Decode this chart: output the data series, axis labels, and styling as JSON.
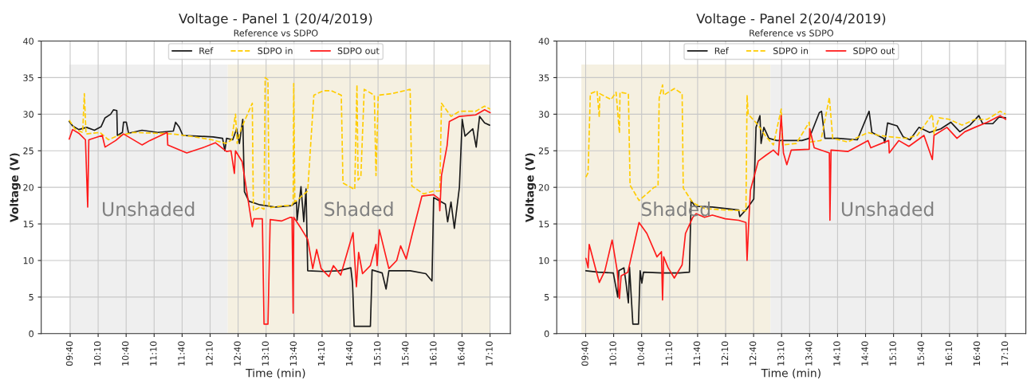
{
  "chart_data": [
    {
      "type": "line",
      "title": "Voltage - Panel 1 (20/4/2019)",
      "subtitle": "Reference vs SDPO",
      "xlabel": "Time (min)",
      "ylabel": "Voltage (V)",
      "xlim": [
        9.15,
        17.53
      ],
      "ylim": [
        0,
        40
      ],
      "yticks": [
        0,
        5,
        10,
        15,
        20,
        25,
        30,
        35,
        40
      ],
      "xticks": [
        {
          "value": 9.6667,
          "label": "09:40"
        },
        {
          "value": 10.1667,
          "label": "10:10"
        },
        {
          "value": 10.6667,
          "label": "10:40"
        },
        {
          "value": 11.1667,
          "label": "11:10"
        },
        {
          "value": 11.6667,
          "label": "11:40"
        },
        {
          "value": 12.1667,
          "label": "12:10"
        },
        {
          "value": 12.6667,
          "label": "12:40"
        },
        {
          "value": 13.1667,
          "label": "13:10"
        },
        {
          "value": 13.6667,
          "label": "13:40"
        },
        {
          "value": 14.1667,
          "label": "14:10"
        },
        {
          "value": 14.6667,
          "label": "14:40"
        },
        {
          "value": 15.1667,
          "label": "15:10"
        },
        {
          "value": 15.6667,
          "label": "15:40"
        },
        {
          "value": 16.1667,
          "label": "16:10"
        },
        {
          "value": 16.6667,
          "label": "16:40"
        },
        {
          "value": 17.1667,
          "label": "17:10"
        }
      ],
      "grid": true,
      "legend": "top",
      "bands": [
        {
          "axis": "x",
          "from": 9.65,
          "to": 12.48,
          "label": "Unshaded",
          "color": "#efefef"
        },
        {
          "axis": "x",
          "from": 12.48,
          "to": 17.17,
          "label": "Shaded",
          "color": "#f5f0e1"
        }
      ],
      "series": [
        {
          "name": "Ref",
          "color": "#1a1a1a",
          "line_style": "solid",
          "x": [
            9.65,
            9.71,
            9.82,
            9.96,
            10.1,
            10.22,
            10.29,
            10.39,
            10.44,
            10.5,
            10.51,
            10.6,
            10.62,
            10.67,
            10.71,
            10.95,
            11.23,
            11.51,
            11.55,
            11.61,
            11.68,
            11.93,
            12.22,
            12.39,
            12.43,
            12.46,
            12.57,
            12.64,
            12.69,
            12.75,
            12.78,
            12.86,
            13.06,
            13.34,
            13.62,
            13.71,
            13.72,
            13.79,
            13.84,
            13.88,
            13.91,
            14.19,
            14.47,
            14.68,
            14.71,
            14.74,
            15.03,
            15.06,
            15.24,
            15.31,
            15.36,
            15.74,
            16.02,
            16.13,
            16.16,
            16.37,
            16.41,
            16.47,
            16.53,
            16.58,
            16.62,
            16.67,
            16.72,
            16.86,
            16.92,
            16.98,
            17.07,
            17.16
          ],
          "values": [
            29.0,
            28.4,
            27.9,
            28.2,
            27.8,
            28.3,
            29.5,
            30.0,
            30.6,
            30.5,
            27.1,
            27.5,
            28.9,
            28.9,
            27.4,
            27.8,
            27.5,
            27.7,
            28.9,
            28.3,
            27.1,
            27.0,
            26.9,
            26.7,
            25.0,
            26.7,
            26.5,
            28.0,
            26.0,
            29.3,
            19.4,
            18.1,
            17.6,
            17.3,
            17.5,
            18.0,
            15.5,
            20.1,
            15.3,
            19.8,
            8.6,
            8.5,
            8.6,
            9.0,
            7.0,
            1.0,
            1.0,
            8.7,
            8.3,
            6.1,
            8.6,
            8.6,
            8.2,
            7.2,
            18.6,
            17.7,
            15.3,
            18.0,
            14.4,
            17.5,
            20.0,
            29.3,
            27.0,
            28.0,
            25.5,
            29.7,
            28.8,
            28.5
          ]
        },
        {
          "name": "SDPO in",
          "color": "#ffcc00",
          "line_style": "dashed",
          "x": [
            9.65,
            9.75,
            9.89,
            9.92,
            9.95,
            10.2,
            10.35,
            10.5,
            10.8,
            11.2,
            11.5,
            11.8,
            12.2,
            12.45,
            12.55,
            12.62,
            12.65,
            12.72,
            12.92,
            12.94,
            13.06,
            13.13,
            13.15,
            13.2,
            13.22,
            13.48,
            13.62,
            13.65,
            13.66,
            13.68,
            13.91,
            14.02,
            14.19,
            14.33,
            14.51,
            14.54,
            14.75,
            14.79,
            14.81,
            14.86,
            14.92,
            15.1,
            15.13,
            15.17,
            15.41,
            15.74,
            15.77,
            15.98,
            16.16,
            16.27,
            16.3,
            16.47,
            16.62,
            16.91,
            17.07,
            17.17
          ],
          "values": [
            29.2,
            28.0,
            27.5,
            32.8,
            27.3,
            27.5,
            26.5,
            27.0,
            27.5,
            27.4,
            27.3,
            27.0,
            26.5,
            26.0,
            26.5,
            30.0,
            26.0,
            28.0,
            31.5,
            16.8,
            17.3,
            17.0,
            35.0,
            34.7,
            17.2,
            17.5,
            17.5,
            17.9,
            34.2,
            18.0,
            19.5,
            32.6,
            33.2,
            33.2,
            32.6,
            20.6,
            19.7,
            34.0,
            21.0,
            21.5,
            33.4,
            32.6,
            21.6,
            32.6,
            32.8,
            33.4,
            20.2,
            19.1,
            19.5,
            19.5,
            31.5,
            29.7,
            30.4,
            30.4,
            31.1,
            30.7
          ]
        },
        {
          "name": "SDPO out",
          "color": "#ff1a1a",
          "line_style": "solid",
          "x": [
            9.65,
            9.71,
            9.82,
            9.94,
            9.98,
            10.0,
            10.24,
            10.29,
            10.48,
            10.62,
            10.95,
            11.09,
            11.4,
            11.41,
            11.75,
            12.03,
            12.26,
            12.46,
            12.54,
            12.6,
            12.62,
            12.74,
            12.82,
            12.92,
            12.95,
            13.1,
            13.13,
            13.2,
            13.24,
            13.44,
            13.6,
            13.63,
            13.65,
            13.66,
            13.79,
            13.91,
            14.0,
            14.07,
            14.15,
            14.29,
            14.37,
            14.5,
            14.72,
            14.78,
            14.82,
            14.89,
            15.03,
            15.13,
            15.15,
            15.19,
            15.36,
            15.5,
            15.57,
            15.67,
            15.78,
            15.95,
            16.16,
            16.26,
            16.27,
            16.3,
            16.4,
            16.44,
            16.62,
            16.91,
            17.07,
            17.17
          ],
          "values": [
            26.6,
            27.9,
            27.4,
            26.5,
            17.3,
            26.5,
            27.1,
            25.5,
            26.4,
            27.3,
            25.8,
            26.4,
            27.5,
            25.8,
            24.7,
            25.4,
            26.1,
            24.9,
            25.0,
            21.9,
            25.0,
            23.5,
            19.5,
            14.6,
            15.7,
            15.7,
            1.3,
            1.3,
            15.6,
            15.4,
            15.9,
            15.9,
            2.8,
            15.9,
            14.4,
            12.9,
            8.9,
            11.5,
            8.9,
            7.8,
            9.3,
            8.0,
            13.8,
            6.4,
            11.1,
            8.2,
            9.3,
            12.2,
            9.3,
            14.2,
            8.9,
            10.0,
            12.0,
            10.2,
            13.7,
            18.8,
            19.0,
            18.4,
            16.8,
            21.6,
            25.7,
            29.0,
            29.7,
            29.9,
            30.6,
            30.2
          ]
        }
      ]
    },
    {
      "type": "line",
      "title": "Voltage - Panel 2(20/4/2019)",
      "subtitle": "Reference vs SDPO",
      "xlabel": "Time (min)",
      "ylabel": "Voltage (V)",
      "xlim": [
        9.15,
        17.53
      ],
      "ylim": [
        0,
        40
      ],
      "yticks": [
        0,
        5,
        10,
        15,
        20,
        25,
        30,
        35,
        40
      ],
      "xticks": [
        {
          "value": 9.6667,
          "label": "09:40"
        },
        {
          "value": 10.1667,
          "label": "10:10"
        },
        {
          "value": 10.6667,
          "label": "10:40"
        },
        {
          "value": 11.1667,
          "label": "11:10"
        },
        {
          "value": 11.6667,
          "label": "11:40"
        },
        {
          "value": 12.1667,
          "label": "12:10"
        },
        {
          "value": 12.6667,
          "label": "12:40"
        },
        {
          "value": 13.1667,
          "label": "13:10"
        },
        {
          "value": 13.6667,
          "label": "13:40"
        },
        {
          "value": 14.1667,
          "label": "14:10"
        },
        {
          "value": 14.6667,
          "label": "14:40"
        },
        {
          "value": 15.1667,
          "label": "15:10"
        },
        {
          "value": 15.6667,
          "label": "15:40"
        },
        {
          "value": 16.1667,
          "label": "16:10"
        },
        {
          "value": 16.6667,
          "label": "16:40"
        },
        {
          "value": 17.1667,
          "label": "17:10"
        }
      ],
      "grid": true,
      "legend": "top",
      "bands": [
        {
          "axis": "x",
          "from": 9.59,
          "to": 12.97,
          "label": "Shaded",
          "color": "#f5f0e1"
        },
        {
          "axis": "x",
          "from": 12.97,
          "to": 17.15,
          "label": "Unshaded",
          "color": "#efefef"
        }
      ],
      "series": [
        {
          "name": "Ref",
          "color": "#1a1a1a",
          "line_style": "solid",
          "x": [
            9.67,
            9.89,
            10.16,
            10.24,
            10.26,
            10.35,
            10.39,
            10.43,
            10.45,
            10.51,
            10.61,
            10.64,
            10.67,
            10.7,
            11.03,
            11.34,
            11.52,
            11.55,
            11.62,
            11.93,
            12.4,
            12.42,
            12.55,
            12.67,
            12.71,
            12.78,
            12.8,
            12.85,
            12.94,
            13.08,
            13.26,
            13.53,
            13.66,
            13.84,
            13.88,
            13.94,
            14.17,
            14.52,
            14.73,
            14.78,
            14.99,
            15.01,
            15.06,
            15.23,
            15.34,
            15.46,
            15.62,
            15.81,
            16.01,
            16.19,
            16.35,
            16.53,
            16.69,
            16.76,
            16.94,
            17.05,
            17.17
          ],
          "values": [
            8.6,
            8.4,
            8.3,
            5.0,
            8.6,
            9.0,
            6.8,
            4.2,
            9.1,
            1.3,
            1.3,
            8.6,
            6.9,
            8.4,
            8.3,
            8.3,
            8.4,
            18.2,
            17.4,
            17.3,
            16.9,
            16.0,
            17.1,
            18.4,
            28.2,
            29.8,
            26.0,
            28.2,
            26.7,
            26.4,
            26.4,
            26.4,
            26.7,
            30.2,
            30.4,
            26.7,
            26.7,
            26.5,
            30.4,
            27.5,
            26.7,
            26.1,
            28.8,
            28.4,
            26.9,
            26.5,
            28.2,
            27.5,
            28.0,
            28.9,
            27.6,
            28.5,
            29.8,
            28.7,
            28.7,
            29.6,
            29.5
          ]
        },
        {
          "name": "SDPO in",
          "color": "#ffcc00",
          "line_style": "dashed",
          "x": [
            9.67,
            9.71,
            9.75,
            9.87,
            9.91,
            9.92,
            10.12,
            10.21,
            10.27,
            10.28,
            10.43,
            10.46,
            10.62,
            10.89,
            10.96,
            10.98,
            11.04,
            11.06,
            11.25,
            11.39,
            11.41,
            11.58,
            11.79,
            12.16,
            12.53,
            12.55,
            12.57,
            12.75,
            12.89,
            13.02,
            13.16,
            13.18,
            13.43,
            13.66,
            13.68,
            13.87,
            14.02,
            14.08,
            14.35,
            14.71,
            14.9,
            15.12,
            15.39,
            15.59,
            15.86,
            15.89,
            15.98,
            16.16,
            16.39,
            16.62,
            16.84,
            17.07,
            17.17
          ],
          "values": [
            21.4,
            22.0,
            32.8,
            33.2,
            29.6,
            32.8,
            32.0,
            33.0,
            27.4,
            33.0,
            32.8,
            20.3,
            18.2,
            20.0,
            20.2,
            32.2,
            34.0,
            32.6,
            33.5,
            32.8,
            19.9,
            17.9,
            17.1,
            16.9,
            16.8,
            32.6,
            30.0,
            28.5,
            26.9,
            25.8,
            30.7,
            25.8,
            26.0,
            28.9,
            26.2,
            26.4,
            32.3,
            26.7,
            26.2,
            27.5,
            27.1,
            26.9,
            26.7,
            27.1,
            30.0,
            27.3,
            29.5,
            29.3,
            28.5,
            29.3,
            29.3,
            30.4,
            30.0
          ]
        },
        {
          "name": "SDPO out",
          "color": "#ff1a1a",
          "line_style": "solid",
          "x": [
            9.67,
            9.71,
            9.73,
            9.84,
            9.91,
            10.01,
            10.14,
            10.23,
            10.27,
            10.3,
            10.42,
            10.62,
            10.76,
            10.94,
            11.02,
            11.04,
            11.06,
            11.14,
            11.25,
            11.39,
            11.45,
            11.58,
            11.64,
            11.79,
            11.93,
            12.16,
            12.4,
            12.53,
            12.55,
            12.58,
            12.61,
            12.75,
            12.89,
            13.02,
            13.11,
            13.16,
            13.2,
            13.26,
            13.34,
            13.66,
            13.67,
            13.75,
            14.02,
            14.03,
            14.05,
            14.35,
            14.71,
            14.76,
            15.08,
            15.09,
            15.26,
            15.44,
            15.71,
            15.86,
            15.89,
            16.12,
            16.3,
            16.44,
            16.62,
            16.84,
            17.07,
            17.17
          ],
          "values": [
            10.3,
            9.0,
            12.2,
            9.0,
            7.0,
            8.6,
            12.8,
            8.6,
            4.8,
            7.9,
            8.4,
            15.2,
            13.7,
            10.5,
            11.2,
            4.6,
            10.5,
            9.0,
            7.6,
            9.4,
            13.7,
            15.9,
            16.4,
            15.9,
            16.2,
            15.7,
            15.5,
            15.2,
            10.0,
            15.2,
            19.6,
            23.6,
            24.4,
            25.1,
            24.4,
            29.8,
            24.7,
            23.1,
            25.1,
            25.2,
            28.0,
            25.4,
            24.7,
            15.5,
            25.1,
            24.9,
            26.4,
            25.4,
            26.4,
            24.7,
            26.4,
            25.6,
            27.1,
            23.8,
            27.1,
            28.2,
            26.7,
            27.6,
            28.2,
            28.9,
            29.8,
            29.3
          ]
        }
      ]
    }
  ]
}
